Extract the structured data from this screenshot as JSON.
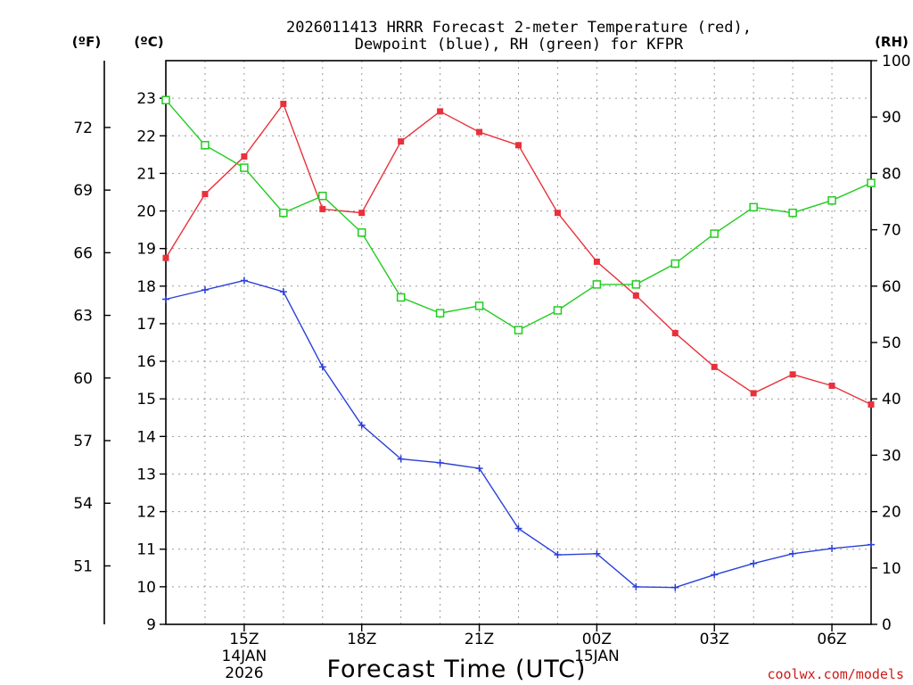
{
  "chart_data": {
    "type": "line",
    "title_line1": "2026011413 HRRR Forecast 2-meter Temperature (red),",
    "title_line2": "Dewpoint (blue), RH (green) for KFPR",
    "xlabel": "Forecast Time (UTC)",
    "left_outer_label": "(ºF)",
    "left_inner_label": "(ºC)",
    "right_label": "(RH)",
    "credit": "coolwx.com/models",
    "x_hours": [
      13,
      14,
      15,
      16,
      17,
      18,
      19,
      20,
      21,
      22,
      23,
      24,
      25,
      26,
      27,
      28,
      29,
      30,
      31
    ],
    "x_ticks": [
      {
        "hour": 15,
        "label": "15Z",
        "sub1": "14JAN",
        "sub2": "2026"
      },
      {
        "hour": 18,
        "label": "18Z",
        "sub1": "",
        "sub2": ""
      },
      {
        "hour": 21,
        "label": "21Z",
        "sub1": "",
        "sub2": ""
      },
      {
        "hour": 24,
        "label": "00Z",
        "sub1": "15JAN",
        "sub2": ""
      },
      {
        "hour": 27,
        "label": "03Z",
        "sub1": "",
        "sub2": ""
      },
      {
        "hour": 30,
        "label": "06Z",
        "sub1": "",
        "sub2": ""
      }
    ],
    "celsius_ticks": [
      "9",
      "10",
      "11",
      "12",
      "13",
      "14",
      "15",
      "16",
      "17",
      "18",
      "19",
      "20",
      "21",
      "22",
      "23"
    ],
    "fahrenheit_ticks": [
      "51",
      "54",
      "57",
      "60",
      "63",
      "66",
      "69",
      "72"
    ],
    "rh_ticks": [
      "0",
      "10",
      "20",
      "30",
      "40",
      "50",
      "60",
      "70",
      "80",
      "90",
      "100"
    ],
    "ylim_c": [
      9,
      24
    ],
    "ylim_rh": [
      0,
      100
    ],
    "series": [
      {
        "name": "Temperature",
        "color": "#e8313b",
        "marker": "filled-square",
        "axis": "celsius",
        "values": [
          18.75,
          20.45,
          21.45,
          22.85,
          20.05,
          19.95,
          21.85,
          22.65,
          22.1,
          21.75,
          19.95,
          18.65,
          17.75,
          16.75,
          15.85,
          15.15,
          15.65,
          15.35,
          14.85
        ]
      },
      {
        "name": "Dewpoint",
        "color": "#2a3fd8",
        "marker": "plus",
        "axis": "celsius",
        "values": [
          17.65,
          17.9,
          18.15,
          17.85,
          15.85,
          14.3,
          13.4,
          13.3,
          13.15,
          11.55,
          10.85,
          10.88,
          10.0,
          9.98,
          10.32,
          10.62,
          10.88,
          11.02,
          11.12
        ]
      },
      {
        "name": "RH",
        "color": "#22cc22",
        "marker": "open-square",
        "axis": "rh",
        "values": [
          93,
          85,
          81,
          73,
          76,
          69.5,
          58,
          55.2,
          56.5,
          52.2,
          55.7,
          60.3,
          60.3,
          64,
          69.3,
          74,
          73,
          75.2,
          78.3
        ]
      }
    ]
  }
}
